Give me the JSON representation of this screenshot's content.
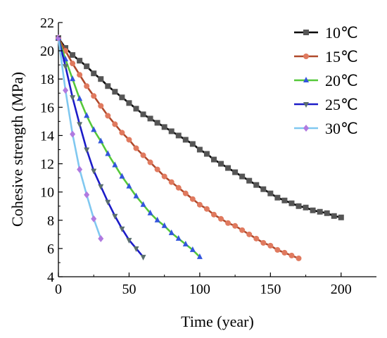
{
  "chart_data": {
    "type": "line",
    "xlabel": "Time (year)",
    "ylabel": "Cohesive strength (MPa)",
    "xlim": [
      0,
      225
    ],
    "ylim": [
      4,
      22
    ],
    "xticks": [
      0,
      50,
      100,
      150,
      200
    ],
    "yticks": [
      4,
      6,
      8,
      10,
      12,
      14,
      16,
      18,
      20,
      22
    ],
    "grid": false,
    "legend_position": "top-right",
    "series": [
      {
        "name": "10℃",
        "color": "#000000",
        "marker": "square",
        "x": [
          0,
          5,
          10,
          15,
          20,
          25,
          30,
          35,
          40,
          45,
          50,
          55,
          60,
          65,
          70,
          75,
          80,
          85,
          90,
          95,
          100,
          105,
          110,
          115,
          120,
          125,
          130,
          135,
          140,
          145,
          150,
          155,
          160,
          165,
          170,
          175,
          180,
          185,
          190,
          195,
          200
        ],
        "values": [
          20.9,
          20.2,
          19.7,
          19.3,
          18.9,
          18.4,
          18.0,
          17.5,
          17.1,
          16.7,
          16.3,
          15.9,
          15.5,
          15.2,
          14.9,
          14.6,
          14.3,
          14.0,
          13.7,
          13.4,
          13.0,
          12.7,
          12.3,
          12.0,
          11.7,
          11.4,
          11.1,
          10.8,
          10.5,
          10.2,
          9.9,
          9.6,
          9.4,
          9.2,
          9.0,
          8.9,
          8.7,
          8.6,
          8.5,
          8.3,
          8.2
        ]
      },
      {
        "name": "15℃",
        "color": "#b04a2c",
        "marker": "circle",
        "x": [
          0,
          5,
          10,
          15,
          20,
          25,
          30,
          35,
          40,
          45,
          50,
          55,
          60,
          65,
          70,
          75,
          80,
          85,
          90,
          95,
          100,
          105,
          110,
          115,
          120,
          125,
          130,
          135,
          140,
          145,
          150,
          155,
          160,
          165,
          170
        ],
        "values": [
          20.9,
          20.0,
          19.1,
          18.3,
          17.5,
          16.8,
          16.1,
          15.4,
          14.8,
          14.2,
          13.7,
          13.1,
          12.6,
          12.1,
          11.6,
          11.1,
          10.7,
          10.3,
          9.9,
          9.5,
          9.1,
          8.8,
          8.4,
          8.1,
          7.8,
          7.6,
          7.3,
          7.0,
          6.7,
          6.4,
          6.2,
          5.9,
          5.7,
          5.5,
          5.3
        ]
      },
      {
        "name": "20℃",
        "color": "#55c83a",
        "marker": "triangle-up",
        "x": [
          0,
          5,
          10,
          15,
          20,
          25,
          30,
          35,
          40,
          45,
          50,
          55,
          60,
          65,
          70,
          75,
          80,
          85,
          90,
          95,
          100
        ],
        "values": [
          20.9,
          19.4,
          18.0,
          16.6,
          15.4,
          14.4,
          13.6,
          12.7,
          11.9,
          11.1,
          10.4,
          9.7,
          9.1,
          8.5,
          8.0,
          7.6,
          7.1,
          6.7,
          6.3,
          5.9,
          5.4
        ]
      },
      {
        "name": "25℃",
        "color": "#1c1cc8",
        "marker": "triangle-down",
        "x": [
          0,
          5,
          10,
          15,
          20,
          25,
          30,
          35,
          40,
          45,
          50,
          55,
          60
        ],
        "values": [
          20.9,
          18.9,
          16.7,
          14.8,
          13.0,
          11.5,
          10.4,
          9.3,
          8.3,
          7.4,
          6.6,
          6.0,
          5.4
        ]
      },
      {
        "name": "30℃",
        "color": "#80c8f0",
        "marker": "diamond",
        "x": [
          0,
          5,
          10,
          15,
          20,
          25,
          30
        ],
        "values": [
          20.9,
          17.2,
          14.1,
          11.6,
          9.8,
          8.1,
          6.7
        ]
      }
    ]
  }
}
